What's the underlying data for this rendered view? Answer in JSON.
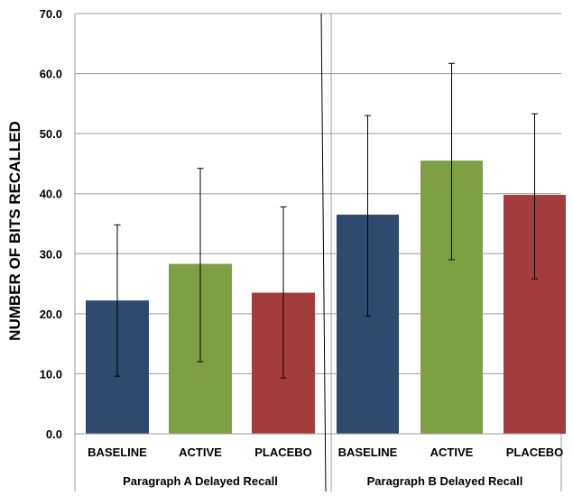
{
  "chart_data": {
    "type": "bar",
    "ylabel": "NUMBER OF BITS RECALLED",
    "ylim": [
      0,
      70
    ],
    "yticks": [
      "0.0",
      "10.0",
      "20.0",
      "30.0",
      "40.0",
      "50.0",
      "60.0",
      "70.0"
    ],
    "grid": true,
    "categories": [
      "BASELINE",
      "ACTIVE",
      "PLACEBO"
    ],
    "colors": [
      "#2e4a6e",
      "#7f9f45",
      "#a43c3c"
    ],
    "groups": [
      {
        "label": "Paragraph A Delayed Recall",
        "values": [
          22.2,
          28.3,
          23.5
        ],
        "error_low": [
          9.6,
          12.0,
          9.3
        ],
        "error_high": [
          34.8,
          44.2,
          37.8
        ]
      },
      {
        "label": "Paragraph B Delayed Recall",
        "values": [
          36.5,
          45.5,
          39.8
        ],
        "error_low": [
          19.6,
          29.0,
          25.8
        ],
        "error_high": [
          53.0,
          61.7,
          53.3
        ]
      }
    ]
  }
}
